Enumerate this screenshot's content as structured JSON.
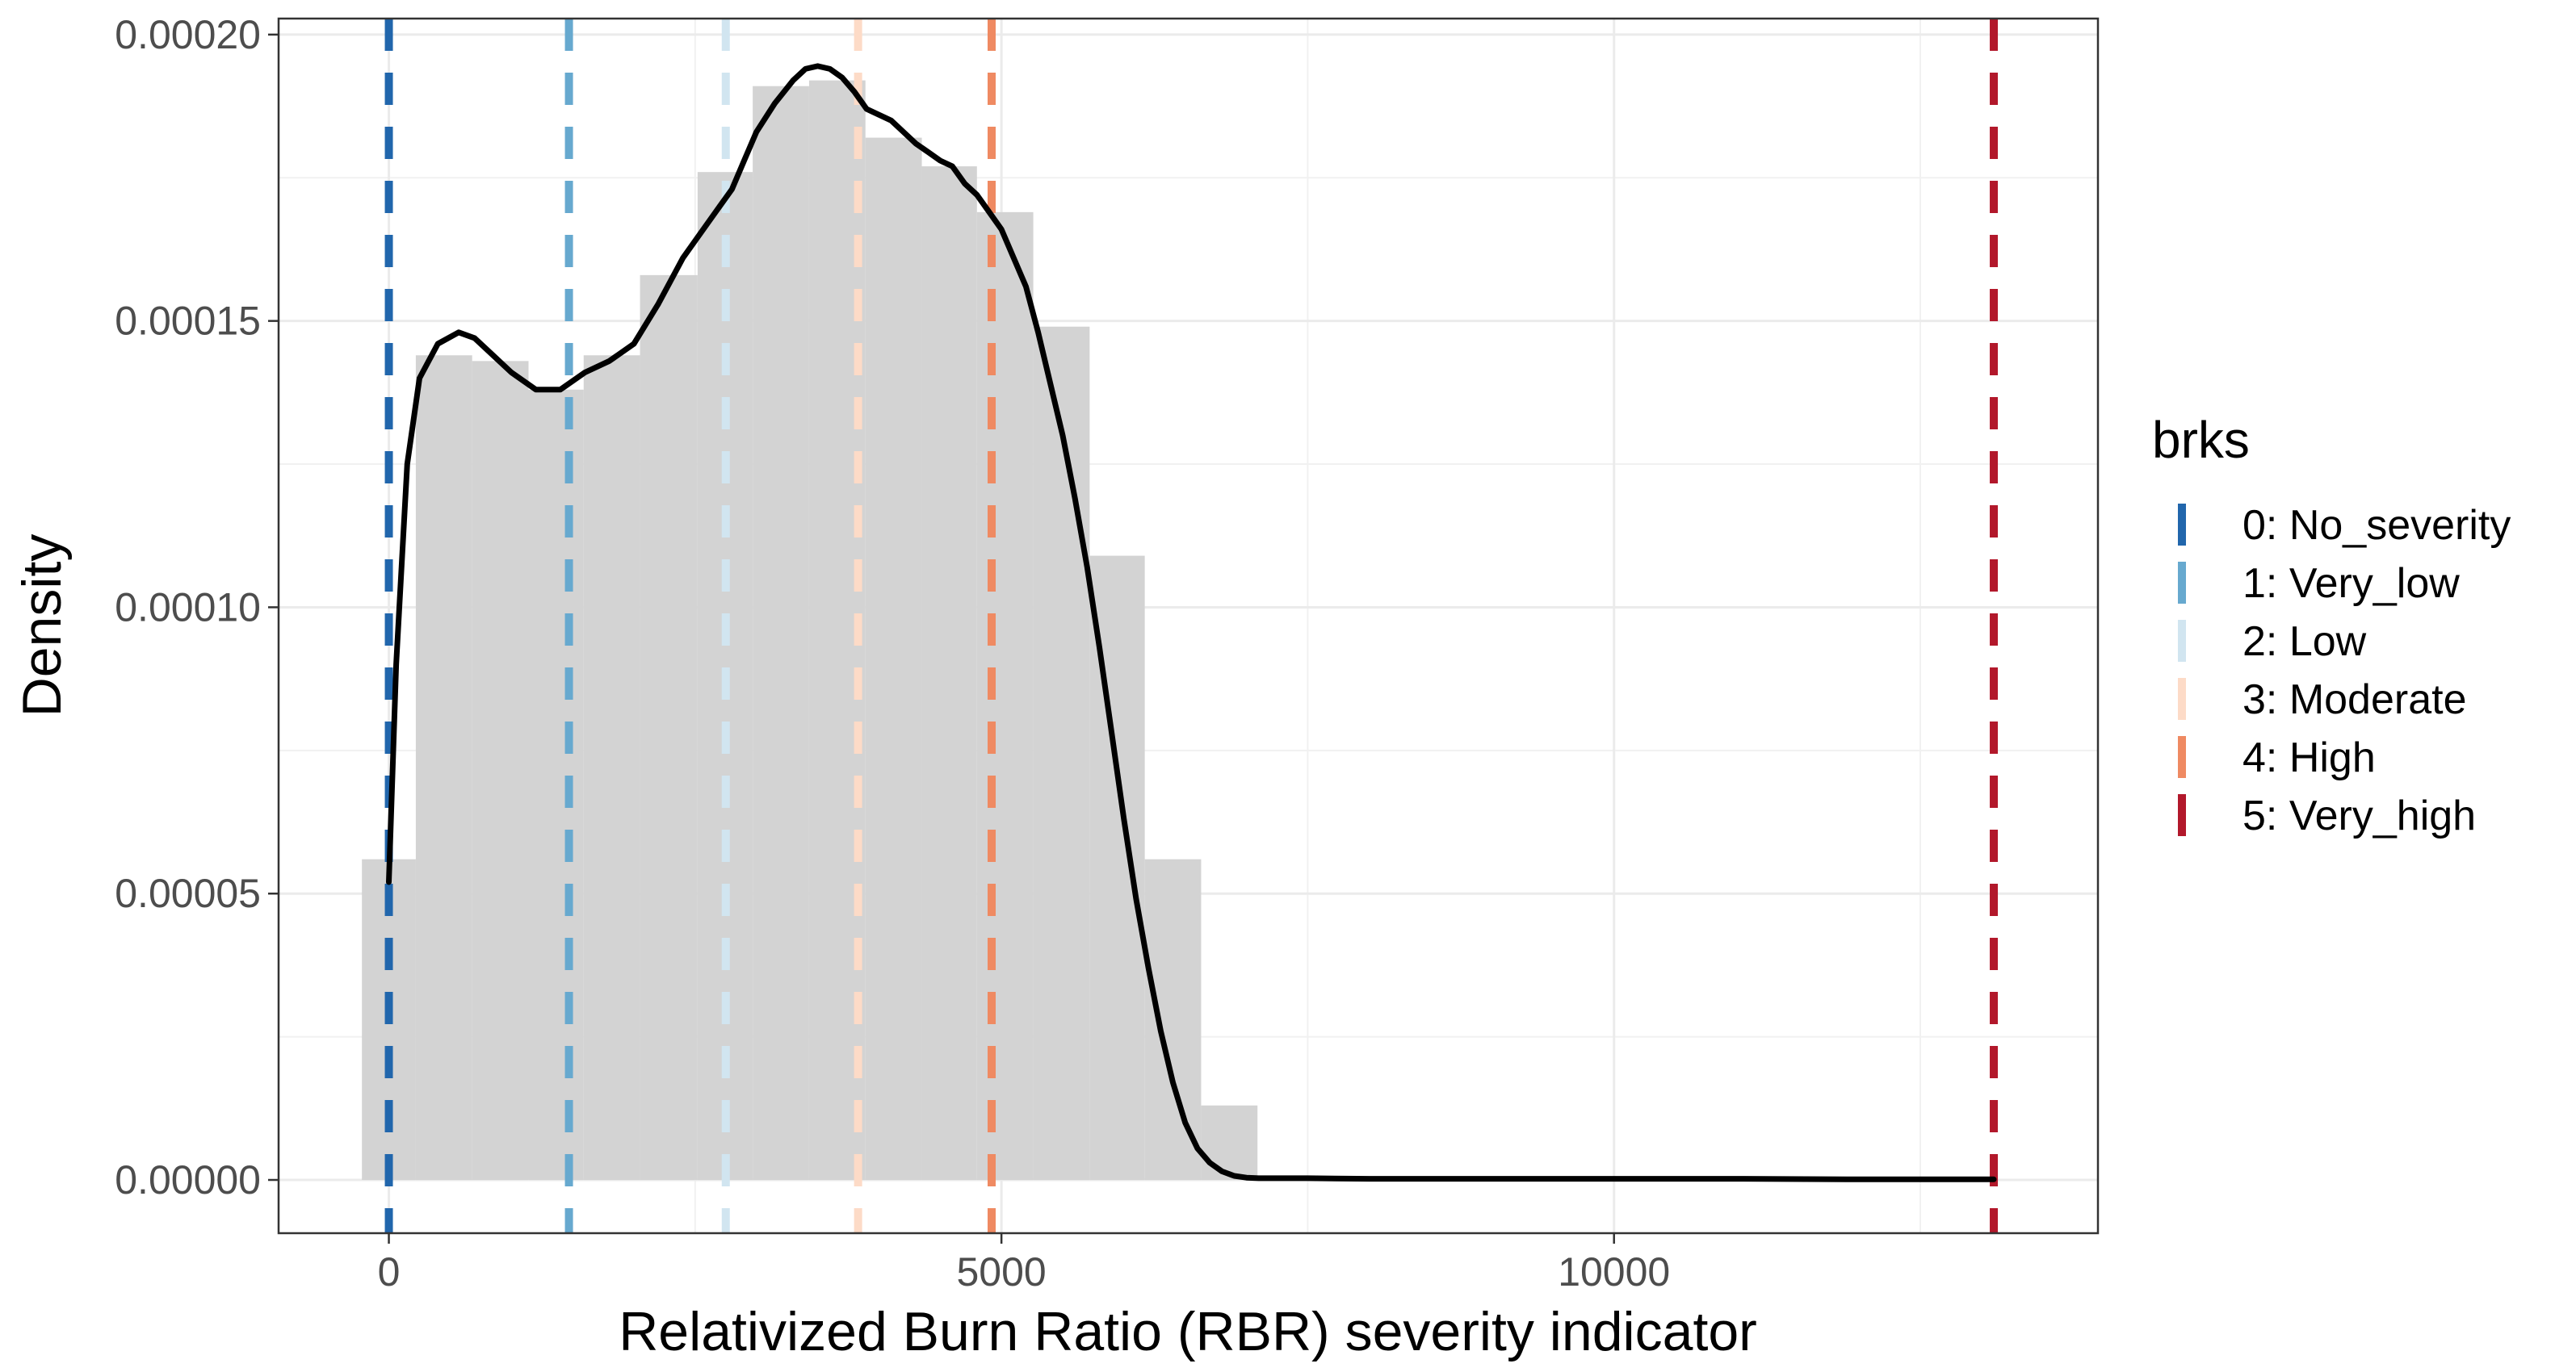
{
  "chart_data": {
    "type": "histogram",
    "xlabel": "Relativized Burn Ratio (RBR) severity indicator",
    "ylabel": "Density",
    "xlim": [
      -900,
      13950
    ],
    "ylim": [
      -9.3e-06,
      0.0002028
    ],
    "x_ticks": [
      0,
      5000,
      10000
    ],
    "x_tick_labels": [
      "0",
      "5000",
      "10000"
    ],
    "y_ticks": [
      0,
      5e-05,
      0.0001,
      0.00015,
      0.0002
    ],
    "y_tick_labels": [
      "0.00000",
      "0.00005",
      "0.00010",
      "0.00015",
      "0.00020"
    ],
    "grid": true,
    "histogram": {
      "fill": "#d3d3d3",
      "bins": [
        {
          "x0": -220,
          "x1": 220,
          "density": 5.6e-05
        },
        {
          "x0": 220,
          "x1": 680,
          "density": 0.000144
        },
        {
          "x0": 680,
          "x1": 1140,
          "density": 0.000143
        },
        {
          "x0": 1140,
          "x1": 1590,
          "density": 0.000138
        },
        {
          "x0": 1590,
          "x1": 2050,
          "density": 0.000144
        },
        {
          "x0": 2050,
          "x1": 2520,
          "density": 0.000158
        },
        {
          "x0": 2520,
          "x1": 2970,
          "density": 0.000176
        },
        {
          "x0": 2970,
          "x1": 3430,
          "density": 0.000191
        },
        {
          "x0": 3430,
          "x1": 3890,
          "density": 0.000192
        },
        {
          "x0": 3890,
          "x1": 4350,
          "density": 0.000182
        },
        {
          "x0": 4350,
          "x1": 4800,
          "density": 0.000177
        },
        {
          "x0": 4800,
          "x1": 5260,
          "density": 0.000169
        },
        {
          "x0": 5260,
          "x1": 5720,
          "density": 0.000149
        },
        {
          "x0": 5720,
          "x1": 6170,
          "density": 0.000109
        },
        {
          "x0": 6170,
          "x1": 6630,
          "density": 5.6e-05
        },
        {
          "x0": 6630,
          "x1": 7090,
          "density": 1.3e-05
        }
      ]
    },
    "density_curve": {
      "color": "#000000",
      "x": [
        0,
        60,
        150,
        250,
        400,
        570,
        700,
        850,
        1000,
        1200,
        1400,
        1600,
        1800,
        2000,
        2200,
        2400,
        2600,
        2700,
        2800,
        2900,
        3000,
        3150,
        3300,
        3400,
        3500,
        3600,
        3700,
        3800,
        3900,
        4000,
        4100,
        4200,
        4300,
        4400,
        4500,
        4600,
        4700,
        4800,
        4900,
        5000,
        5100,
        5200,
        5300,
        5400,
        5500,
        5600,
        5700,
        5800,
        5900,
        6000,
        6100,
        6200,
        6300,
        6400,
        6500,
        6600,
        6700,
        6800,
        6900,
        7000,
        7100,
        7200,
        7300,
        7500,
        8000,
        9000,
        10000,
        11000,
        12000,
        13100
      ],
      "y": [
        5.2e-05,
        9e-05,
        0.000125,
        0.00014,
        0.000146,
        0.000148,
        0.000147,
        0.000144,
        0.000141,
        0.000138,
        0.000138,
        0.000141,
        0.000143,
        0.000146,
        0.000153,
        0.000161,
        0.000167,
        0.00017,
        0.000173,
        0.000178,
        0.000183,
        0.000188,
        0.000192,
        0.000194,
        0.0001945,
        0.000194,
        0.0001925,
        0.00019,
        0.000187,
        0.000186,
        0.000185,
        0.000183,
        0.000181,
        0.0001795,
        0.000178,
        0.000177,
        0.000174,
        0.000172,
        0.000169,
        0.000166,
        0.000161,
        0.000156,
        0.000148,
        0.000139,
        0.00013,
        0.000119,
        0.000107,
        9.3e-05,
        7.8e-05,
        6.3e-05,
        4.9e-05,
        3.7e-05,
        2.6e-05,
        1.7e-05,
        1e-05,
        5.5e-06,
        3e-06,
        1.5e-06,
        7e-07,
        4e-07,
        3e-07,
        3e-07,
        3e-07,
        3e-07,
        2e-07,
        2e-07,
        2e-07,
        2e-07,
        1e-07,
        1e-07
      ]
    },
    "breaks": [
      {
        "label": "0: No_severity",
        "x": 0,
        "color": "#2166ac"
      },
      {
        "label": "1: Very_low",
        "x": 1470,
        "color": "#67a9cf"
      },
      {
        "label": "2: Low",
        "x": 2750,
        "color": "#d1e5f0"
      },
      {
        "label": "3: Moderate",
        "x": 3830,
        "color": "#fddbc7"
      },
      {
        "label": "4: High",
        "x": 4920,
        "color": "#ef8a62"
      },
      {
        "label": "5: Very_high",
        "x": 13100,
        "color": "#b2182b"
      }
    ],
    "legend": {
      "title": "brks",
      "placement": "right"
    }
  }
}
